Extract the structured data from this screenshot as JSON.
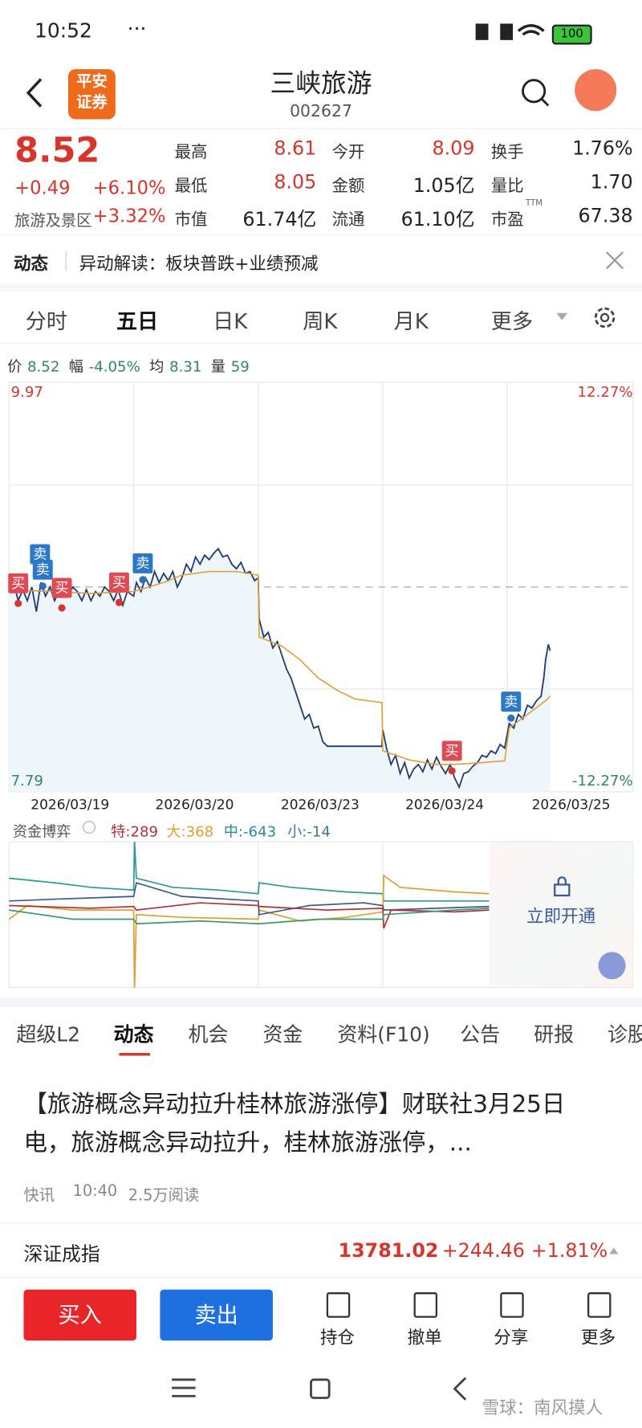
{
  "status_bar": {
    "time": "10:52",
    "battery": "100"
  },
  "header": {
    "logo": [
      "平安",
      "证券"
    ],
    "title": "三峡旅游",
    "code": "002627"
  },
  "quote": {
    "price": "8.52",
    "change": "+0.49",
    "change_pct": "+6.10%",
    "sector": "旅游及景区",
    "sector_pct": "+3.32%",
    "stats": [
      {
        "label": "最高",
        "value": "8.61",
        "color": "#d9342b"
      },
      {
        "label": "今开",
        "value": "8.09",
        "color": "#d9342b"
      },
      {
        "label": "换手",
        "value": "1.76%",
        "color": "#222222"
      },
      {
        "label": "最低",
        "value": "8.05",
        "color": "#d9342b"
      },
      {
        "label": "金额",
        "value": "1.05亿",
        "color": "#222222"
      },
      {
        "label": "量比",
        "value": "1.70",
        "color": "#222222"
      },
      {
        "label": "市值",
        "value": "61.74亿",
        "color": "#222222"
      },
      {
        "label": "流通",
        "value": "61.10亿",
        "color": "#222222"
      },
      {
        "label": "市盈",
        "sup": "TTM",
        "value": "67.38",
        "color": "#222222"
      }
    ]
  },
  "news_bar": {
    "tag": "动态",
    "text": "异动解读：板块普跌+业绩预减"
  },
  "chart_tabs": {
    "items": [
      "分时",
      "五日",
      "日K",
      "周K",
      "月K",
      "更多"
    ],
    "active": 1
  },
  "info_line": [
    {
      "label": "价",
      "value": "8.52"
    },
    {
      "label": "幅",
      "value": "-4.05%"
    },
    {
      "label": "均",
      "value": "8.31"
    },
    {
      "label": "量",
      "value": "59"
    }
  ],
  "chart": {
    "y_top": "9.97",
    "y_bottom": "7.79",
    "pct_top": "12.27%",
    "pct_bottom": "-12.27%",
    "dates": [
      "2026/03/19",
      "2026/03/20",
      "2026/03/23",
      "2026/03/24",
      "2026/03/25"
    ],
    "markers": [
      {
        "label": "买",
        "kind": "buy"
      },
      {
        "label": "卖",
        "kind": "sell"
      },
      {
        "label": "卖",
        "kind": "sell"
      },
      {
        "label": "买",
        "kind": "buy"
      },
      {
        "label": "买",
        "kind": "buy"
      },
      {
        "label": "卖",
        "kind": "sell"
      },
      {
        "label": "买",
        "kind": "buy"
      },
      {
        "label": "卖",
        "kind": "sell"
      }
    ]
  },
  "fund": {
    "title": "资金博弈",
    "items": [
      "特:289",
      "大:368",
      "中:-643",
      "小:-14"
    ],
    "lock": "立即开通"
  },
  "section_tabs": {
    "items": [
      "超级L2",
      "动态",
      "机会",
      "资金",
      "资料(F10)",
      "公告",
      "研报",
      "诊股"
    ],
    "active": 1
  },
  "news": {
    "title": "【旅游概念异动拉升桂林旅游涨停】财联社3月25日电，旅游概念异动拉升，桂林旅游涨停，...",
    "source": "快讯",
    "time": "10:40",
    "reads": "2.5万阅读"
  },
  "index": {
    "name": "深证成指",
    "value": "13781.02",
    "change": "+244.46",
    "pct": "+1.81%"
  },
  "actions": {
    "buy": "买入",
    "sell": "卖出",
    "items": [
      "持仓",
      "撤单",
      "分享",
      "更多"
    ]
  },
  "watermark": "雪球：南风摸人"
}
